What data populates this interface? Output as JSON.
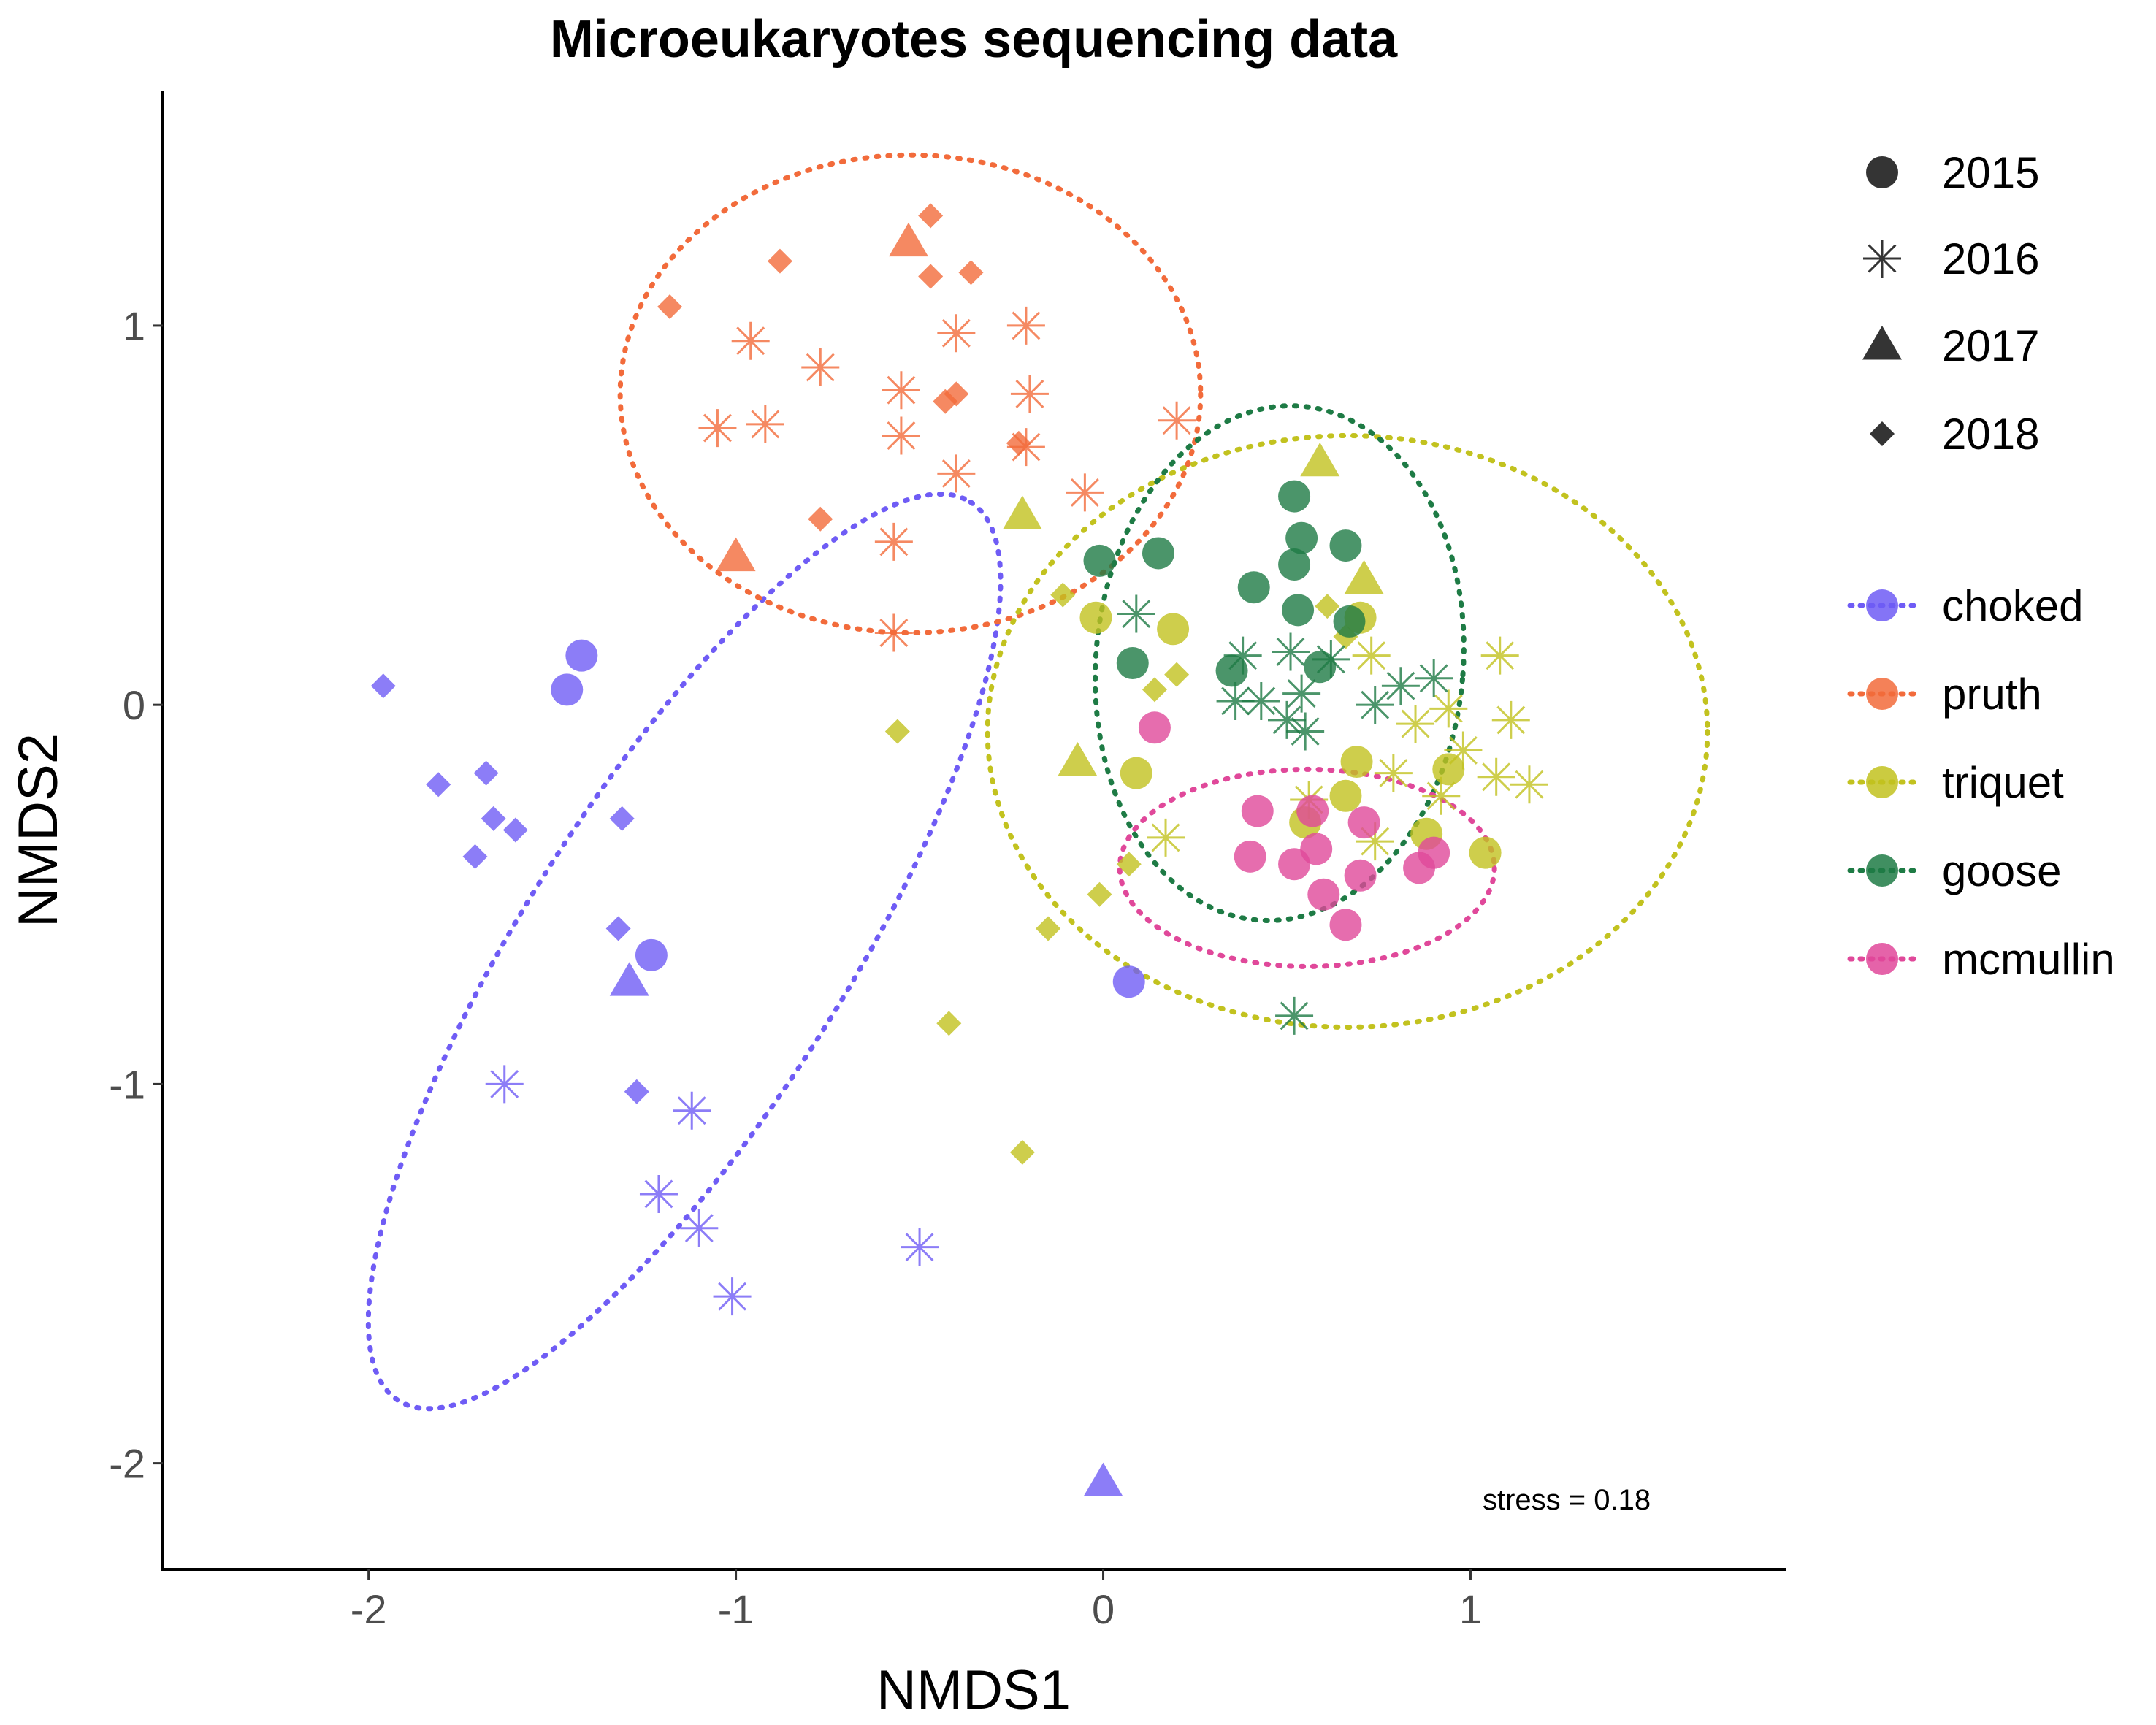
{
  "chart_data": {
    "type": "scatter",
    "title": "Microeukaryotes sequencing data",
    "xlabel": "NMDS1",
    "ylabel": "NMDS2",
    "xlim": [
      -2.56,
      1.86
    ],
    "ylim": [
      -2.28,
      1.62
    ],
    "xticks": [
      -2,
      -1,
      0,
      1
    ],
    "yticks": [
      -2,
      -1,
      0,
      1
    ],
    "xtick_labels": [
      "-2",
      "-1",
      "0",
      "1"
    ],
    "ytick_labels": [
      "-2",
      "-1",
      "0",
      "1"
    ],
    "grid": false,
    "annotation": "stress = 0.18",
    "shape_legend": {
      "placement": "right",
      "entries": [
        {
          "label": "2015",
          "shape": "circle"
        },
        {
          "label": "2016",
          "shape": "asterisk"
        },
        {
          "label": "2017",
          "shape": "triangle"
        },
        {
          "label": "2018",
          "shape": "diamond"
        }
      ]
    },
    "color_legend": {
      "placement": "right",
      "entries": [
        {
          "label": "choked",
          "color": "#6f5cf5"
        },
        {
          "label": "pruth",
          "color": "#f26b3b"
        },
        {
          "label": "triquet",
          "color": "#c2c21f"
        },
        {
          "label": "goose",
          "color": "#1e7b45"
        },
        {
          "label": "mcmullin",
          "color": "#e0489a"
        }
      ]
    },
    "ellipses": [
      {
        "site": "choked",
        "color": "#6f5cf5",
        "cx": -1.14,
        "cy": -0.65,
        "rx": 1.45,
        "ry": 0.42,
        "angle_deg": -57.5
      },
      {
        "site": "pruth",
        "color": "#f26b3b",
        "cx": -0.525,
        "cy": 0.82,
        "rx": 0.79,
        "ry": 0.63,
        "angle_deg": 0
      },
      {
        "site": "triquet",
        "color": "#c2c21f",
        "cx": 0.665,
        "cy": -0.07,
        "rx": 0.98,
        "ry": 0.78,
        "angle_deg": 0
      },
      {
        "site": "goose",
        "color": "#1e7b45",
        "cx": 0.48,
        "cy": 0.11,
        "rx": 0.5,
        "ry": 0.68,
        "angle_deg": 5
      },
      {
        "site": "mcmullin",
        "color": "#e0489a",
        "cx": 0.555,
        "cy": -0.43,
        "rx": 0.51,
        "ry": 0.26,
        "angle_deg": 0
      }
    ],
    "points": [
      {
        "site": "choked",
        "year": "2015",
        "x": -1.42,
        "y": 0.13
      },
      {
        "site": "choked",
        "year": "2015",
        "x": -1.46,
        "y": 0.04
      },
      {
        "site": "choked",
        "year": "2015",
        "x": -1.23,
        "y": -0.66
      },
      {
        "site": "choked",
        "year": "2015",
        "x": 0.07,
        "y": -0.73
      },
      {
        "site": "choked",
        "year": "2016",
        "x": -1.63,
        "y": -1.0
      },
      {
        "site": "choked",
        "year": "2016",
        "x": -1.12,
        "y": -1.07
      },
      {
        "site": "choked",
        "year": "2016",
        "x": -1.21,
        "y": -1.29
      },
      {
        "site": "choked",
        "year": "2016",
        "x": -1.1,
        "y": -1.38
      },
      {
        "site": "choked",
        "year": "2016",
        "x": -1.01,
        "y": -1.56
      },
      {
        "site": "choked",
        "year": "2016",
        "x": -0.5,
        "y": -1.43
      },
      {
        "site": "choked",
        "year": "2017",
        "x": -1.29,
        "y": -0.73
      },
      {
        "site": "choked",
        "year": "2017",
        "x": 0.0,
        "y": -2.05
      },
      {
        "site": "choked",
        "year": "2018",
        "x": -1.96,
        "y": 0.05
      },
      {
        "site": "choked",
        "year": "2018",
        "x": -1.81,
        "y": -0.21
      },
      {
        "site": "choked",
        "year": "2018",
        "x": -1.68,
        "y": -0.18
      },
      {
        "site": "choked",
        "year": "2018",
        "x": -1.66,
        "y": -0.3
      },
      {
        "site": "choked",
        "year": "2018",
        "x": -1.6,
        "y": -0.33
      },
      {
        "site": "choked",
        "year": "2018",
        "x": -1.71,
        "y": -0.4
      },
      {
        "site": "choked",
        "year": "2018",
        "x": -1.31,
        "y": -0.3
      },
      {
        "site": "choked",
        "year": "2018",
        "x": -1.32,
        "y": -0.59
      },
      {
        "site": "choked",
        "year": "2018",
        "x": -1.27,
        "y": -1.02
      },
      {
        "site": "pruth",
        "year": "2016",
        "x": -0.96,
        "y": 0.96
      },
      {
        "site": "pruth",
        "year": "2016",
        "x": -0.77,
        "y": 0.89
      },
      {
        "site": "pruth",
        "year": "2016",
        "x": -1.05,
        "y": 0.73
      },
      {
        "site": "pruth",
        "year": "2016",
        "x": -0.92,
        "y": 0.74
      },
      {
        "site": "pruth",
        "year": "2016",
        "x": -0.55,
        "y": 0.83
      },
      {
        "site": "pruth",
        "year": "2016",
        "x": -0.55,
        "y": 0.71
      },
      {
        "site": "pruth",
        "year": "2016",
        "x": -0.4,
        "y": 0.98
      },
      {
        "site": "pruth",
        "year": "2016",
        "x": -0.21,
        "y": 1.0
      },
      {
        "site": "pruth",
        "year": "2016",
        "x": -0.2,
        "y": 0.82
      },
      {
        "site": "pruth",
        "year": "2016",
        "x": -0.21,
        "y": 0.68
      },
      {
        "site": "pruth",
        "year": "2016",
        "x": -0.4,
        "y": 0.61
      },
      {
        "site": "pruth",
        "year": "2016",
        "x": -0.05,
        "y": 0.56
      },
      {
        "site": "pruth",
        "year": "2016",
        "x": 0.2,
        "y": 0.75
      },
      {
        "site": "pruth",
        "year": "2016",
        "x": -0.57,
        "y": 0.43
      },
      {
        "site": "pruth",
        "year": "2016",
        "x": -0.57,
        "y": 0.19
      },
      {
        "site": "pruth",
        "year": "2017",
        "x": -0.53,
        "y": 1.22
      },
      {
        "site": "pruth",
        "year": "2017",
        "x": -1.0,
        "y": 0.39
      },
      {
        "site": "pruth",
        "year": "2018",
        "x": -1.18,
        "y": 1.05
      },
      {
        "site": "pruth",
        "year": "2018",
        "x": -0.88,
        "y": 1.17
      },
      {
        "site": "pruth",
        "year": "2018",
        "x": -0.47,
        "y": 1.29
      },
      {
        "site": "pruth",
        "year": "2018",
        "x": -0.47,
        "y": 1.13
      },
      {
        "site": "pruth",
        "year": "2018",
        "x": -0.36,
        "y": 1.14
      },
      {
        "site": "pruth",
        "year": "2018",
        "x": -0.4,
        "y": 0.82
      },
      {
        "site": "pruth",
        "year": "2018",
        "x": -0.43,
        "y": 0.8
      },
      {
        "site": "pruth",
        "year": "2018",
        "x": -0.23,
        "y": 0.69
      },
      {
        "site": "pruth",
        "year": "2018",
        "x": -0.77,
        "y": 0.49
      },
      {
        "site": "triquet",
        "year": "2015",
        "x": -0.02,
        "y": 0.23
      },
      {
        "site": "triquet",
        "year": "2015",
        "x": 0.19,
        "y": 0.2
      },
      {
        "site": "triquet",
        "year": "2015",
        "x": 0.09,
        "y": -0.18
      },
      {
        "site": "triquet",
        "year": "2015",
        "x": 0.7,
        "y": 0.23
      },
      {
        "site": "triquet",
        "year": "2015",
        "x": 0.69,
        "y": -0.15
      },
      {
        "site": "triquet",
        "year": "2015",
        "x": 0.66,
        "y": -0.24
      },
      {
        "site": "triquet",
        "year": "2015",
        "x": 0.55,
        "y": -0.31
      },
      {
        "site": "triquet",
        "year": "2015",
        "x": 0.88,
        "y": -0.34
      },
      {
        "site": "triquet",
        "year": "2015",
        "x": 0.94,
        "y": -0.17
      },
      {
        "site": "triquet",
        "year": "2015",
        "x": 1.04,
        "y": -0.39
      },
      {
        "site": "triquet",
        "year": "2016",
        "x": 0.73,
        "y": 0.13
      },
      {
        "site": "triquet",
        "year": "2016",
        "x": 0.85,
        "y": -0.05
      },
      {
        "site": "triquet",
        "year": "2016",
        "x": 0.94,
        "y": -0.01
      },
      {
        "site": "triquet",
        "year": "2016",
        "x": 1.08,
        "y": 0.13
      },
      {
        "site": "triquet",
        "year": "2016",
        "x": 1.11,
        "y": -0.04
      },
      {
        "site": "triquet",
        "year": "2016",
        "x": 0.98,
        "y": -0.12
      },
      {
        "site": "triquet",
        "year": "2016",
        "x": 1.07,
        "y": -0.19
      },
      {
        "site": "triquet",
        "year": "2016",
        "x": 1.16,
        "y": -0.21
      },
      {
        "site": "triquet",
        "year": "2016",
        "x": 0.79,
        "y": -0.18
      },
      {
        "site": "triquet",
        "year": "2016",
        "x": 0.92,
        "y": -0.24
      },
      {
        "site": "triquet",
        "year": "2016",
        "x": 0.56,
        "y": -0.25
      },
      {
        "site": "triquet",
        "year": "2016",
        "x": 0.74,
        "y": -0.36
      },
      {
        "site": "triquet",
        "year": "2016",
        "x": 0.17,
        "y": -0.35
      },
      {
        "site": "triquet",
        "year": "2017",
        "x": 0.59,
        "y": 0.64
      },
      {
        "site": "triquet",
        "year": "2017",
        "x": -0.22,
        "y": 0.5
      },
      {
        "site": "triquet",
        "year": "2017",
        "x": 0.71,
        "y": 0.33
      },
      {
        "site": "triquet",
        "year": "2017",
        "x": -0.07,
        "y": -0.15
      },
      {
        "site": "triquet",
        "year": "2018",
        "x": -0.11,
        "y": 0.29
      },
      {
        "site": "triquet",
        "year": "2018",
        "x": 0.61,
        "y": 0.26
      },
      {
        "site": "triquet",
        "year": "2018",
        "x": 0.66,
        "y": 0.18
      },
      {
        "site": "triquet",
        "year": "2018",
        "x": 0.2,
        "y": 0.08
      },
      {
        "site": "triquet",
        "year": "2018",
        "x": 0.14,
        "y": 0.04
      },
      {
        "site": "triquet",
        "year": "2018",
        "x": -0.56,
        "y": -0.07
      },
      {
        "site": "triquet",
        "year": "2018",
        "x": 0.07,
        "y": -0.42
      },
      {
        "site": "triquet",
        "year": "2018",
        "x": -0.01,
        "y": -0.5
      },
      {
        "site": "triquet",
        "year": "2018",
        "x": -0.15,
        "y": -0.59
      },
      {
        "site": "triquet",
        "year": "2018",
        "x": -0.42,
        "y": -0.84
      },
      {
        "site": "triquet",
        "year": "2018",
        "x": -0.22,
        "y": -1.18
      },
      {
        "site": "goose",
        "year": "2015",
        "x": 0.52,
        "y": 0.55
      },
      {
        "site": "goose",
        "year": "2015",
        "x": 0.54,
        "y": 0.44
      },
      {
        "site": "goose",
        "year": "2015",
        "x": 0.66,
        "y": 0.42
      },
      {
        "site": "goose",
        "year": "2015",
        "x": 0.52,
        "y": 0.37
      },
      {
        "site": "goose",
        "year": "2015",
        "x": 0.41,
        "y": 0.31
      },
      {
        "site": "goose",
        "year": "2015",
        "x": -0.01,
        "y": 0.38
      },
      {
        "site": "goose",
        "year": "2015",
        "x": 0.15,
        "y": 0.4
      },
      {
        "site": "goose",
        "year": "2015",
        "x": 0.53,
        "y": 0.25
      },
      {
        "site": "goose",
        "year": "2015",
        "x": 0.67,
        "y": 0.22
      },
      {
        "site": "goose",
        "year": "2015",
        "x": 0.08,
        "y": 0.11
      },
      {
        "site": "goose",
        "year": "2015",
        "x": 0.35,
        "y": 0.09
      },
      {
        "site": "goose",
        "year": "2015",
        "x": 0.59,
        "y": 0.1
      },
      {
        "site": "goose",
        "year": "2016",
        "x": 0.09,
        "y": 0.24
      },
      {
        "site": "goose",
        "year": "2016",
        "x": 0.38,
        "y": 0.13
      },
      {
        "site": "goose",
        "year": "2016",
        "x": 0.51,
        "y": 0.14
      },
      {
        "site": "goose",
        "year": "2016",
        "x": 0.62,
        "y": 0.12
      },
      {
        "site": "goose",
        "year": "2016",
        "x": 0.36,
        "y": 0.01
      },
      {
        "site": "goose",
        "year": "2016",
        "x": 0.43,
        "y": 0.01
      },
      {
        "site": "goose",
        "year": "2016",
        "x": 0.54,
        "y": 0.03
      },
      {
        "site": "goose",
        "year": "2016",
        "x": 0.5,
        "y": -0.04
      },
      {
        "site": "goose",
        "year": "2016",
        "x": 0.55,
        "y": -0.07
      },
      {
        "site": "goose",
        "year": "2016",
        "x": 0.74,
        "y": 0.0
      },
      {
        "site": "goose",
        "year": "2016",
        "x": 0.81,
        "y": 0.05
      },
      {
        "site": "goose",
        "year": "2016",
        "x": 0.9,
        "y": 0.07
      },
      {
        "site": "goose",
        "year": "2016",
        "x": 0.52,
        "y": -0.82
      },
      {
        "site": "mcmullin",
        "year": "2015",
        "x": 0.14,
        "y": -0.06
      },
      {
        "site": "mcmullin",
        "year": "2015",
        "x": 0.42,
        "y": -0.28
      },
      {
        "site": "mcmullin",
        "year": "2015",
        "x": 0.57,
        "y": -0.28
      },
      {
        "site": "mcmullin",
        "year": "2015",
        "x": 0.71,
        "y": -0.31
      },
      {
        "site": "mcmullin",
        "year": "2015",
        "x": 0.4,
        "y": -0.4
      },
      {
        "site": "mcmullin",
        "year": "2015",
        "x": 0.52,
        "y": -0.42
      },
      {
        "site": "mcmullin",
        "year": "2015",
        "x": 0.58,
        "y": -0.38
      },
      {
        "site": "mcmullin",
        "year": "2015",
        "x": 0.7,
        "y": -0.45
      },
      {
        "site": "mcmullin",
        "year": "2015",
        "x": 0.6,
        "y": -0.5
      },
      {
        "site": "mcmullin",
        "year": "2015",
        "x": 0.66,
        "y": -0.58
      },
      {
        "site": "mcmullin",
        "year": "2015",
        "x": 0.86,
        "y": -0.43
      },
      {
        "site": "mcmullin",
        "year": "2015",
        "x": 0.9,
        "y": -0.39
      }
    ]
  }
}
